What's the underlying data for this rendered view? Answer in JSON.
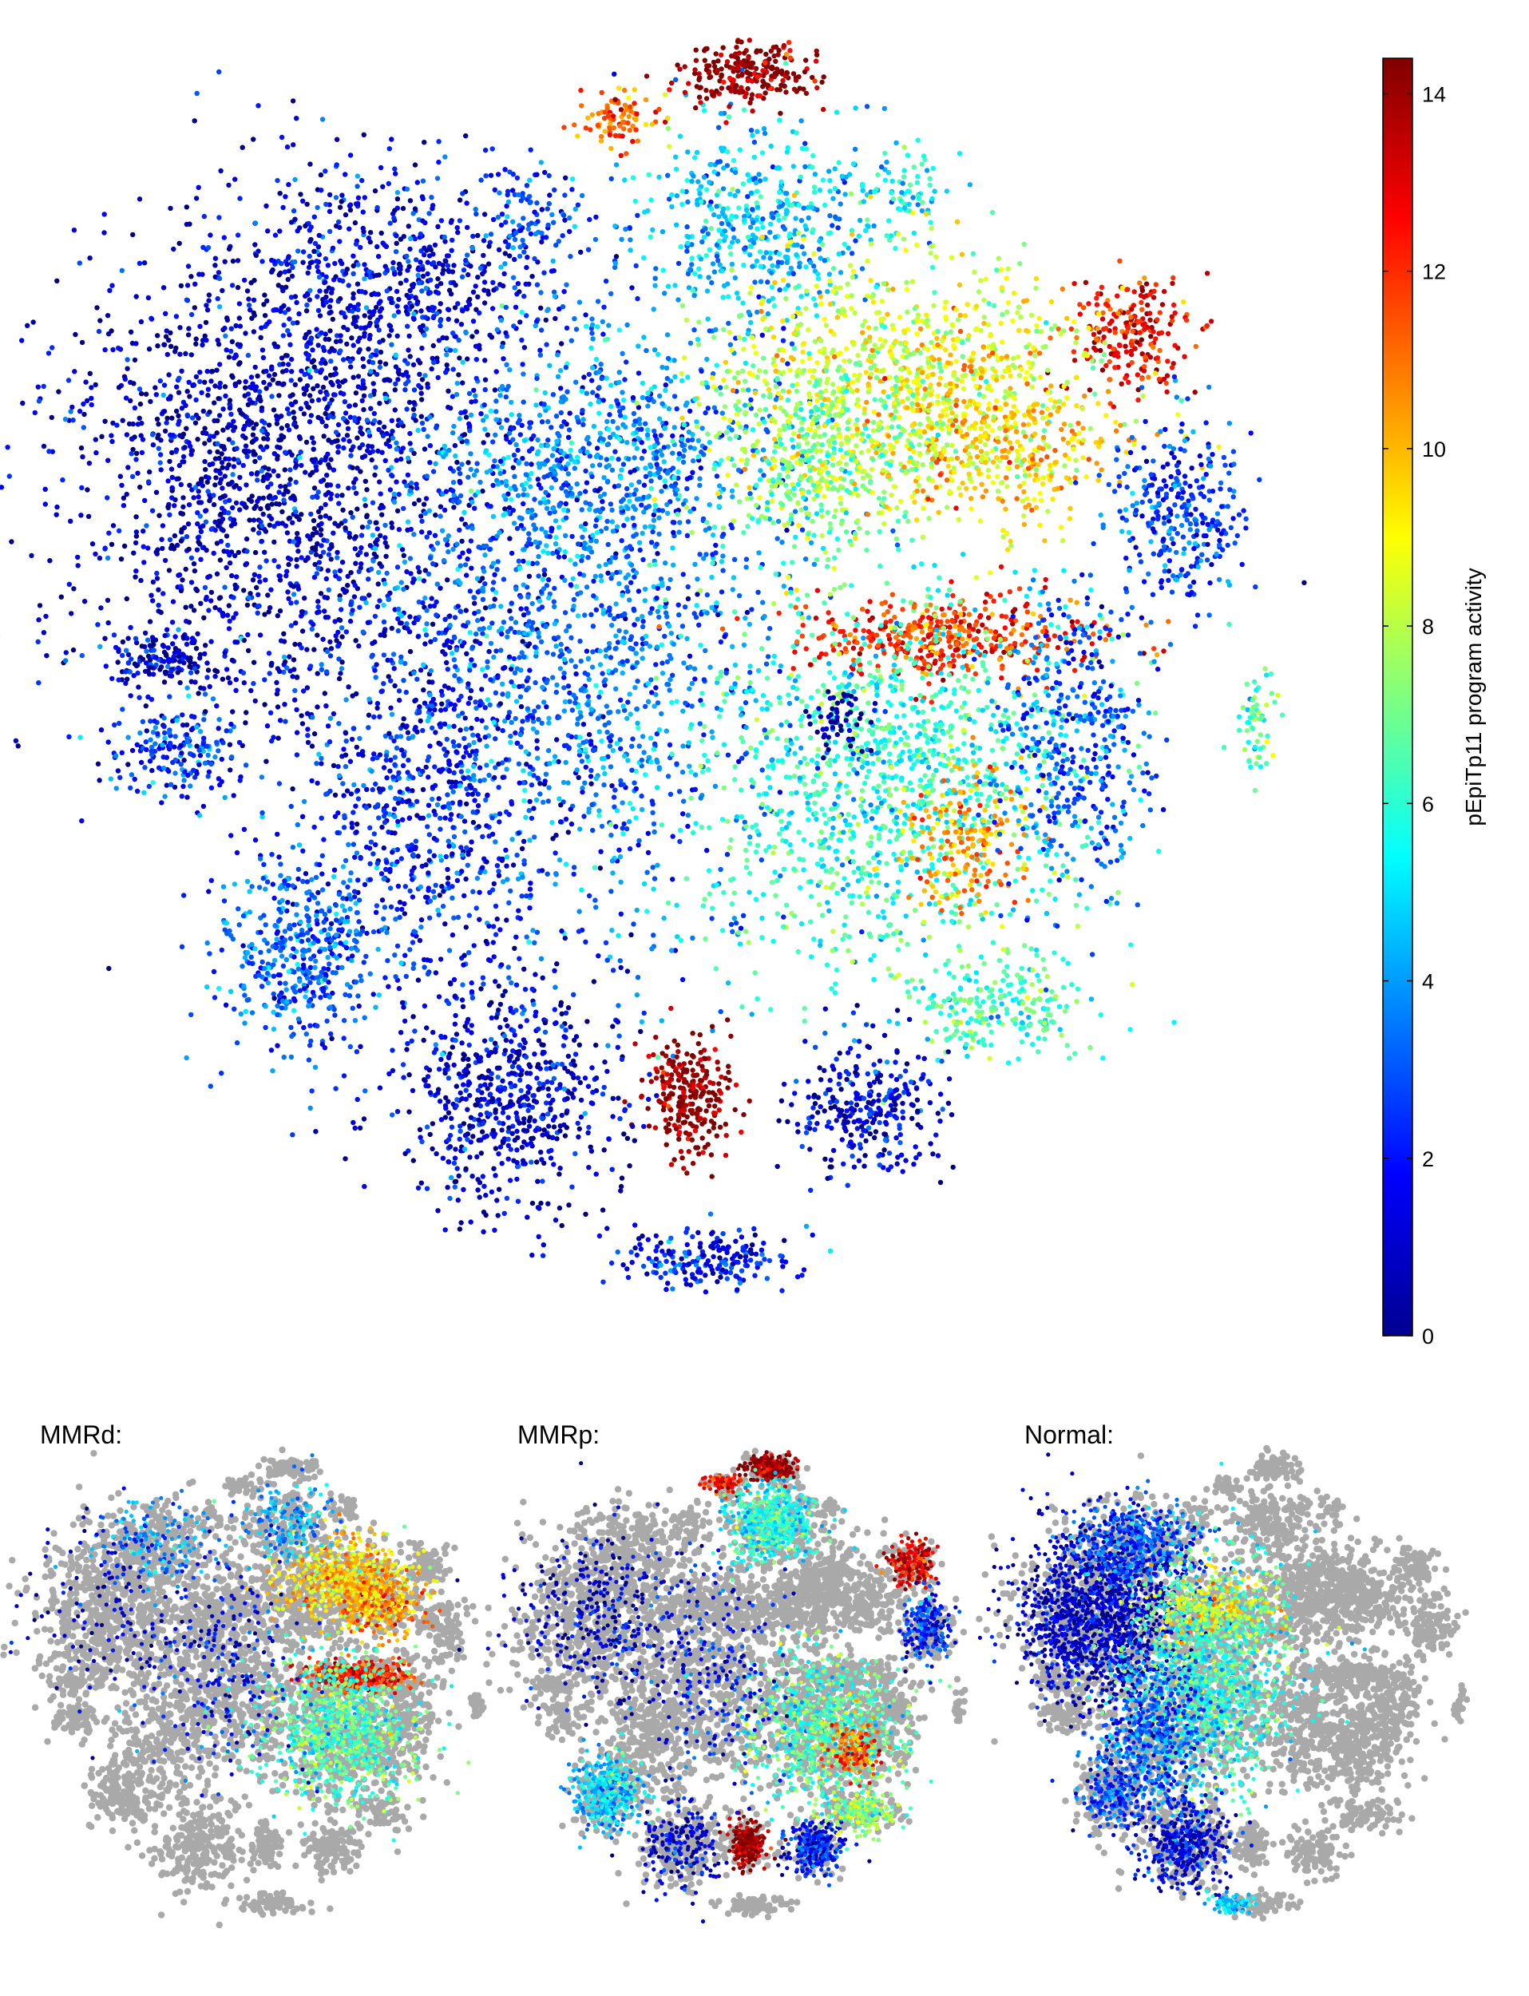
{
  "chart_data": [
    {
      "type": "scatter",
      "panel": "main",
      "title": "",
      "xlabel": "",
      "ylabel": "",
      "axes_visible": false,
      "colormap": "jet",
      "colorbar": {
        "label": "pEpiTp11 program activity",
        "range": [
          0,
          14.4
        ],
        "ticks": [
          0,
          2,
          4,
          6,
          8,
          10,
          12,
          14
        ],
        "tick_labels": [
          "0",
          "2",
          "4",
          "6",
          "8",
          "10",
          "12",
          "14"
        ],
        "placement": "right"
      },
      "clusters": [
        {
          "x": -0.72,
          "y": 0.38,
          "sx": 0.22,
          "sy": 0.24,
          "activity": 1.0,
          "n": 1800
        },
        {
          "x": -0.52,
          "y": 0.72,
          "sx": 0.17,
          "sy": 0.12,
          "activity": 1.6,
          "n": 650
        },
        {
          "x": -0.18,
          "y": 0.12,
          "sx": 0.22,
          "sy": 0.32,
          "activity": 3.3,
          "n": 1700
        },
        {
          "x": -0.45,
          "y": -0.18,
          "sx": 0.14,
          "sy": 0.22,
          "activity": 2.0,
          "n": 750
        },
        {
          "x": -0.14,
          "y": 0.42,
          "sx": 0.18,
          "sy": 0.09,
          "activity": 3.6,
          "n": 450
        },
        {
          "x": 0.12,
          "y": 0.82,
          "sx": 0.13,
          "sy": 0.11,
          "activity": 4.5,
          "n": 500
        },
        {
          "x": -0.26,
          "y": 0.83,
          "sx": 0.05,
          "sy": 0.06,
          "activity": 2.8,
          "n": 90
        },
        {
          "x": 0.39,
          "y": 0.88,
          "sx": 0.04,
          "sy": 0.04,
          "activity": 5.3,
          "n": 70
        },
        {
          "x": 0.12,
          "y": 1.08,
          "sx": 0.07,
          "sy": 0.035,
          "activity": 14.2,
          "n": 230
        },
        {
          "x": -0.11,
          "y": 1.0,
          "sx": 0.05,
          "sy": 0.03,
          "activity": 11.2,
          "n": 90
        },
        {
          "x": 0.78,
          "y": 0.63,
          "sx": 0.06,
          "sy": 0.06,
          "activity": 12.8,
          "n": 220
        },
        {
          "x": 0.39,
          "y": 0.55,
          "sx": 0.19,
          "sy": 0.12,
          "activity": 8.5,
          "n": 850
        },
        {
          "x": 0.24,
          "y": 0.42,
          "sx": 0.12,
          "sy": 0.12,
          "activity": 7.2,
          "n": 500
        },
        {
          "x": 0.55,
          "y": 0.44,
          "sx": 0.12,
          "sy": 0.09,
          "activity": 9.6,
          "n": 400
        },
        {
          "x": 0.46,
          "y": 0.1,
          "sx": 0.15,
          "sy": 0.04,
          "activity": 12.0,
          "n": 420
        },
        {
          "x": 0.36,
          "y": -0.15,
          "sx": 0.21,
          "sy": 0.2,
          "activity": 6.0,
          "n": 1300
        },
        {
          "x": 0.5,
          "y": -0.25,
          "sx": 0.07,
          "sy": 0.08,
          "activity": 10.5,
          "n": 200
        },
        {
          "x": 0.68,
          "y": -0.08,
          "sx": 0.08,
          "sy": 0.16,
          "activity": 3.0,
          "n": 420
        },
        {
          "x": 0.86,
          "y": 0.32,
          "sx": 0.07,
          "sy": 0.09,
          "activity": 2.5,
          "n": 320
        },
        {
          "x": 0.55,
          "y": -0.55,
          "sx": 0.1,
          "sy": 0.05,
          "activity": 6.3,
          "n": 220
        },
        {
          "x": 0.32,
          "y": -0.72,
          "sx": 0.08,
          "sy": 0.07,
          "activity": 1.3,
          "n": 300
        },
        {
          "x": 0.01,
          "y": -0.7,
          "sx": 0.045,
          "sy": 0.06,
          "activity": 14.3,
          "n": 260
        },
        {
          "x": -0.3,
          "y": -0.7,
          "sx": 0.12,
          "sy": 0.12,
          "activity": 1.2,
          "n": 650
        },
        {
          "x": -0.66,
          "y": -0.45,
          "sx": 0.09,
          "sy": 0.11,
          "activity": 3.0,
          "n": 460
        },
        {
          "x": -0.88,
          "y": -0.1,
          "sx": 0.06,
          "sy": 0.05,
          "activity": 2.6,
          "n": 180
        },
        {
          "x": -0.9,
          "y": 0.06,
          "sx": 0.06,
          "sy": 0.03,
          "activity": 1.0,
          "n": 130
        },
        {
          "x": 0.05,
          "y": -0.98,
          "sx": 0.09,
          "sy": 0.03,
          "activity": 2.0,
          "n": 200
        },
        {
          "x": 1.0,
          "y": -0.04,
          "sx": 0.02,
          "sy": 0.05,
          "activity": 6.5,
          "n": 60
        },
        {
          "x": 0.27,
          "y": -0.04,
          "sx": 0.035,
          "sy": 0.035,
          "activity": 0.6,
          "n": 60
        }
      ]
    },
    {
      "type": "scatter",
      "panel": "MMRd",
      "title": "MMRd:",
      "colormap": "jet",
      "background_color": "#a9a9a9",
      "clusters": [
        {
          "x": 0.39,
          "y": 0.55,
          "sx": 0.19,
          "sy": 0.12,
          "activity": 9.5,
          "n": 600
        },
        {
          "x": 0.46,
          "y": 0.1,
          "sx": 0.15,
          "sy": 0.04,
          "activity": 12.2,
          "n": 300
        },
        {
          "x": 0.36,
          "y": -0.15,
          "sx": 0.21,
          "sy": 0.2,
          "activity": 6.5,
          "n": 850
        },
        {
          "x": 0.55,
          "y": 0.44,
          "sx": 0.12,
          "sy": 0.09,
          "activity": 10.5,
          "n": 300
        },
        {
          "x": 0.12,
          "y": 0.82,
          "sx": 0.13,
          "sy": 0.11,
          "activity": 4.0,
          "n": 150
        },
        {
          "x": -0.52,
          "y": 0.72,
          "sx": 0.17,
          "sy": 0.12,
          "activity": 3.5,
          "n": 150
        },
        {
          "x": -0.72,
          "y": 0.38,
          "sx": 0.22,
          "sy": 0.24,
          "activity": 1.0,
          "n": 120
        },
        {
          "x": -0.18,
          "y": 0.12,
          "sx": 0.22,
          "sy": 0.32,
          "activity": 1.8,
          "n": 220
        }
      ]
    },
    {
      "type": "scatter",
      "panel": "MMRp",
      "title": "MMRp:",
      "colormap": "jet",
      "background_color": "#a9a9a9",
      "clusters": [
        {
          "x": 0.12,
          "y": 1.08,
          "sx": 0.07,
          "sy": 0.035,
          "activity": 14.2,
          "n": 220
        },
        {
          "x": -0.11,
          "y": 1.0,
          "sx": 0.05,
          "sy": 0.03,
          "activity": 12.5,
          "n": 70
        },
        {
          "x": 0.78,
          "y": 0.63,
          "sx": 0.06,
          "sy": 0.06,
          "activity": 13.0,
          "n": 200
        },
        {
          "x": 0.12,
          "y": 0.82,
          "sx": 0.13,
          "sy": 0.11,
          "activity": 5.8,
          "n": 500
        },
        {
          "x": 0.01,
          "y": -0.7,
          "sx": 0.045,
          "sy": 0.06,
          "activity": 14.3,
          "n": 240
        },
        {
          "x": 0.36,
          "y": -0.15,
          "sx": 0.21,
          "sy": 0.2,
          "activity": 6.5,
          "n": 800
        },
        {
          "x": 0.5,
          "y": -0.25,
          "sx": 0.07,
          "sy": 0.08,
          "activity": 11.5,
          "n": 150
        },
        {
          "x": -0.66,
          "y": -0.45,
          "sx": 0.09,
          "sy": 0.11,
          "activity": 4.8,
          "n": 380
        },
        {
          "x": 0.32,
          "y": -0.72,
          "sx": 0.08,
          "sy": 0.07,
          "activity": 2.0,
          "n": 280
        },
        {
          "x": 0.86,
          "y": 0.32,
          "sx": 0.07,
          "sy": 0.09,
          "activity": 2.3,
          "n": 220
        },
        {
          "x": 0.55,
          "y": -0.55,
          "sx": 0.1,
          "sy": 0.05,
          "activity": 7.5,
          "n": 200
        },
        {
          "x": -0.72,
          "y": 0.38,
          "sx": 0.22,
          "sy": 0.24,
          "activity": 1.0,
          "n": 300
        },
        {
          "x": -0.18,
          "y": 0.12,
          "sx": 0.22,
          "sy": 0.32,
          "activity": 2.0,
          "n": 250
        },
        {
          "x": -0.3,
          "y": -0.7,
          "sx": 0.12,
          "sy": 0.12,
          "activity": 1.2,
          "n": 180
        }
      ]
    },
    {
      "type": "scatter",
      "panel": "Normal",
      "title": "Normal:",
      "colormap": "jet",
      "background_color": "#a9a9a9",
      "clusters": [
        {
          "x": -0.72,
          "y": 0.38,
          "sx": 0.22,
          "sy": 0.24,
          "activity": 1.0,
          "n": 1300
        },
        {
          "x": -0.52,
          "y": 0.72,
          "sx": 0.17,
          "sy": 0.12,
          "activity": 2.8,
          "n": 450
        },
        {
          "x": -0.18,
          "y": 0.12,
          "sx": 0.22,
          "sy": 0.32,
          "activity": 6.0,
          "n": 1200
        },
        {
          "x": -0.45,
          "y": -0.18,
          "sx": 0.14,
          "sy": 0.22,
          "activity": 3.0,
          "n": 550
        },
        {
          "x": -0.14,
          "y": 0.42,
          "sx": 0.18,
          "sy": 0.09,
          "activity": 8.5,
          "n": 250
        },
        {
          "x": -0.3,
          "y": -0.7,
          "sx": 0.12,
          "sy": 0.12,
          "activity": 1.6,
          "n": 380
        },
        {
          "x": -0.66,
          "y": -0.45,
          "sx": 0.09,
          "sy": 0.11,
          "activity": 2.5,
          "n": 200
        },
        {
          "x": -0.1,
          "y": -0.98,
          "sx": 0.06,
          "sy": 0.025,
          "activity": 4.5,
          "n": 80
        }
      ]
    }
  ]
}
